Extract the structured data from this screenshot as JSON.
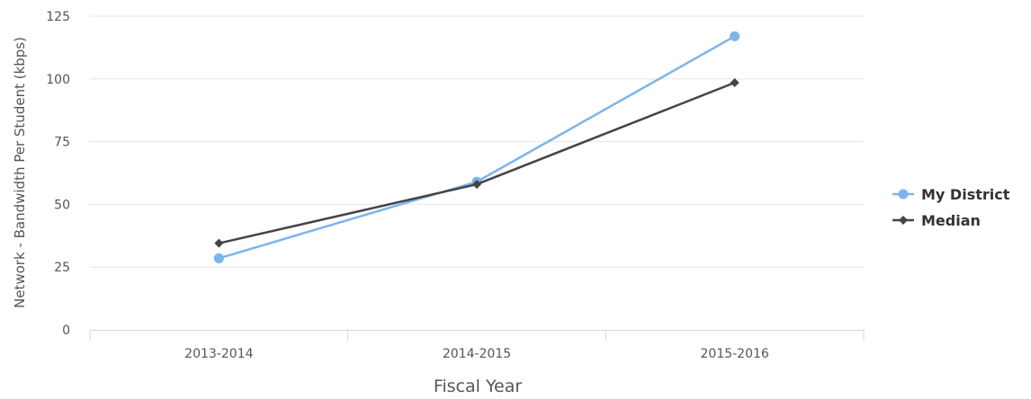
{
  "chart_data": {
    "type": "line",
    "title": "",
    "xlabel": "Fiscal Year",
    "ylabel": "Network - Bandwidth Per Student (kbps)",
    "categories": [
      "2013-2014",
      "2014-2015",
      "2015-2016"
    ],
    "ylim": [
      0,
      125
    ],
    "yticks": [
      0,
      25,
      50,
      75,
      100,
      125
    ],
    "grid": true,
    "legend_position": "right",
    "series": [
      {
        "name": "My District",
        "values": [
          28.5,
          59,
          117
        ],
        "color": "#7cb5ec",
        "marker": "circle"
      },
      {
        "name": "Median",
        "values": [
          34.5,
          58,
          98.5
        ],
        "color": "#434348",
        "marker": "diamond"
      }
    ]
  }
}
